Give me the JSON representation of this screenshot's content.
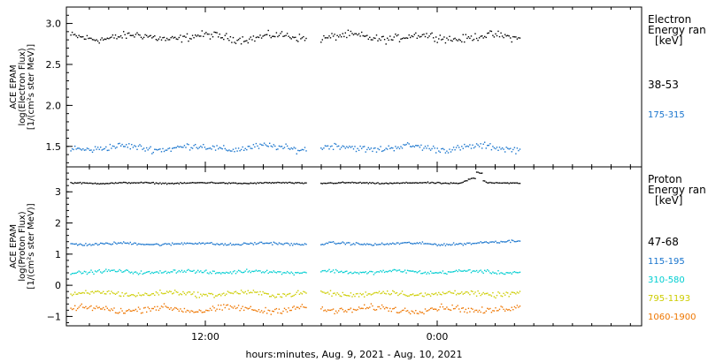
{
  "chart_data": {
    "type": "scatter",
    "xlabel": "hours:minutes, Aug.  9, 2021 - Aug. 10, 2021",
    "x_ticks": [
      "12:00",
      "0:00"
    ],
    "data_gap": [
      "17:15",
      "17:55"
    ],
    "data_end": [
      "2021-08-10",
      "04:15"
    ],
    "panels": [
      {
        "name": "electron",
        "ylabel": [
          "ACE EPAM",
          "log(Electron Flux)",
          "[1/(cm²s ster MeV)]"
        ],
        "ylim": [
          1.25,
          3.2
        ],
        "y_ticks": [
          1.5,
          2.0,
          2.5,
          3.0
        ],
        "y_tick_labels": [
          "1.5",
          "2.0",
          "2.5",
          "3.0"
        ],
        "legend_title": [
          "Electron",
          "Energy ran",
          "[keV]"
        ],
        "series": [
          {
            "name": "38-53",
            "color": "#000000",
            "mean": 2.84,
            "spread": 0.07
          },
          {
            "name": "175-315",
            "color": "#1874cd",
            "mean": 1.49,
            "spread": 0.06
          }
        ]
      },
      {
        "name": "proton",
        "ylabel": [
          "ACE EPAM",
          "log(Proton Flux)",
          "[1/(cm²s ster MeV)]"
        ],
        "ylim": [
          -1.3,
          3.8
        ],
        "y_ticks": [
          -1,
          0,
          1,
          2,
          3
        ],
        "y_tick_labels": [
          "−1",
          "0",
          "1",
          "2",
          "3"
        ],
        "legend_title": [
          "Proton",
          "Energy ran",
          "[keV]"
        ],
        "series": [
          {
            "name": "47-68",
            "color": "#000000",
            "mean": 3.3,
            "spread": 0.03
          },
          {
            "name": "115-195",
            "color": "#1874cd",
            "mean": 1.35,
            "spread": 0.06
          },
          {
            "name": "310-580",
            "color": "#00ced1",
            "mean": 0.45,
            "spread": 0.08
          },
          {
            "name": "795-1193",
            "color": "#cdcd00",
            "mean": -0.25,
            "spread": 0.12
          },
          {
            "name": "1060-1900",
            "color": "#ee7600",
            "mean": -0.75,
            "spread": 0.15
          }
        ]
      }
    ]
  }
}
